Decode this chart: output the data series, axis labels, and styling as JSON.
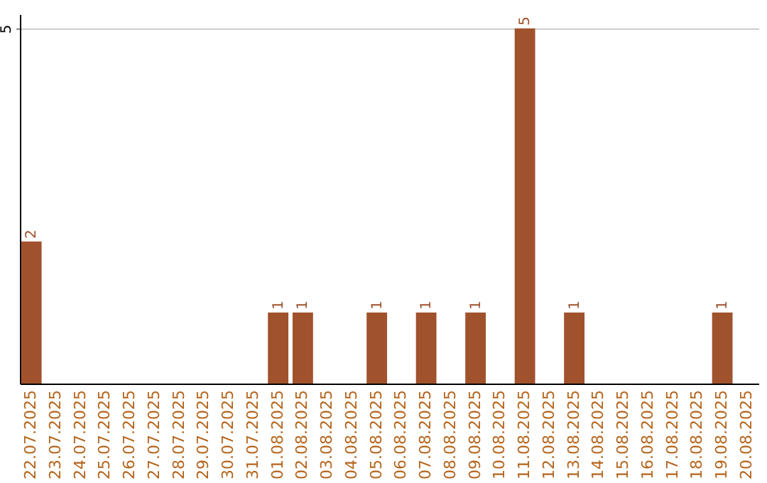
{
  "chart_data": {
    "type": "bar",
    "categories": [
      "22.07.2025",
      "23.07.2025",
      "24.07.2025",
      "25.07.2025",
      "26.07.2025",
      "27.07.2025",
      "28.07.2025",
      "29.07.2025",
      "30.07.2025",
      "31.07.2025",
      "01.08.2025",
      "02.08.2025",
      "03.08.2025",
      "04.08.2025",
      "05.08.2025",
      "06.08.2025",
      "07.08.2025",
      "08.08.2025",
      "09.08.2025",
      "10.08.2025",
      "11.08.2025",
      "12.08.2025",
      "13.08.2025",
      "14.08.2025",
      "15.08.2025",
      "16.08.2025",
      "17.08.2025",
      "18.08.2025",
      "19.08.2025",
      "20.08.2025"
    ],
    "values": [
      2,
      0,
      0,
      0,
      0,
      0,
      0,
      0,
      0,
      0,
      1,
      1,
      0,
      0,
      1,
      0,
      1,
      0,
      1,
      0,
      5,
      0,
      1,
      0,
      0,
      0,
      0,
      0,
      1,
      0
    ],
    "value_labels": [
      "2",
      null,
      null,
      null,
      null,
      null,
      null,
      null,
      null,
      null,
      "1",
      "1",
      null,
      null,
      "1",
      null,
      "1",
      null,
      "1",
      null,
      "5",
      null,
      "1",
      null,
      null,
      null,
      null,
      null,
      "1",
      null
    ],
    "color": "#a0522d",
    "ylim": [
      0,
      5.2
    ],
    "yticks": [
      5
    ],
    "grid": "y"
  }
}
